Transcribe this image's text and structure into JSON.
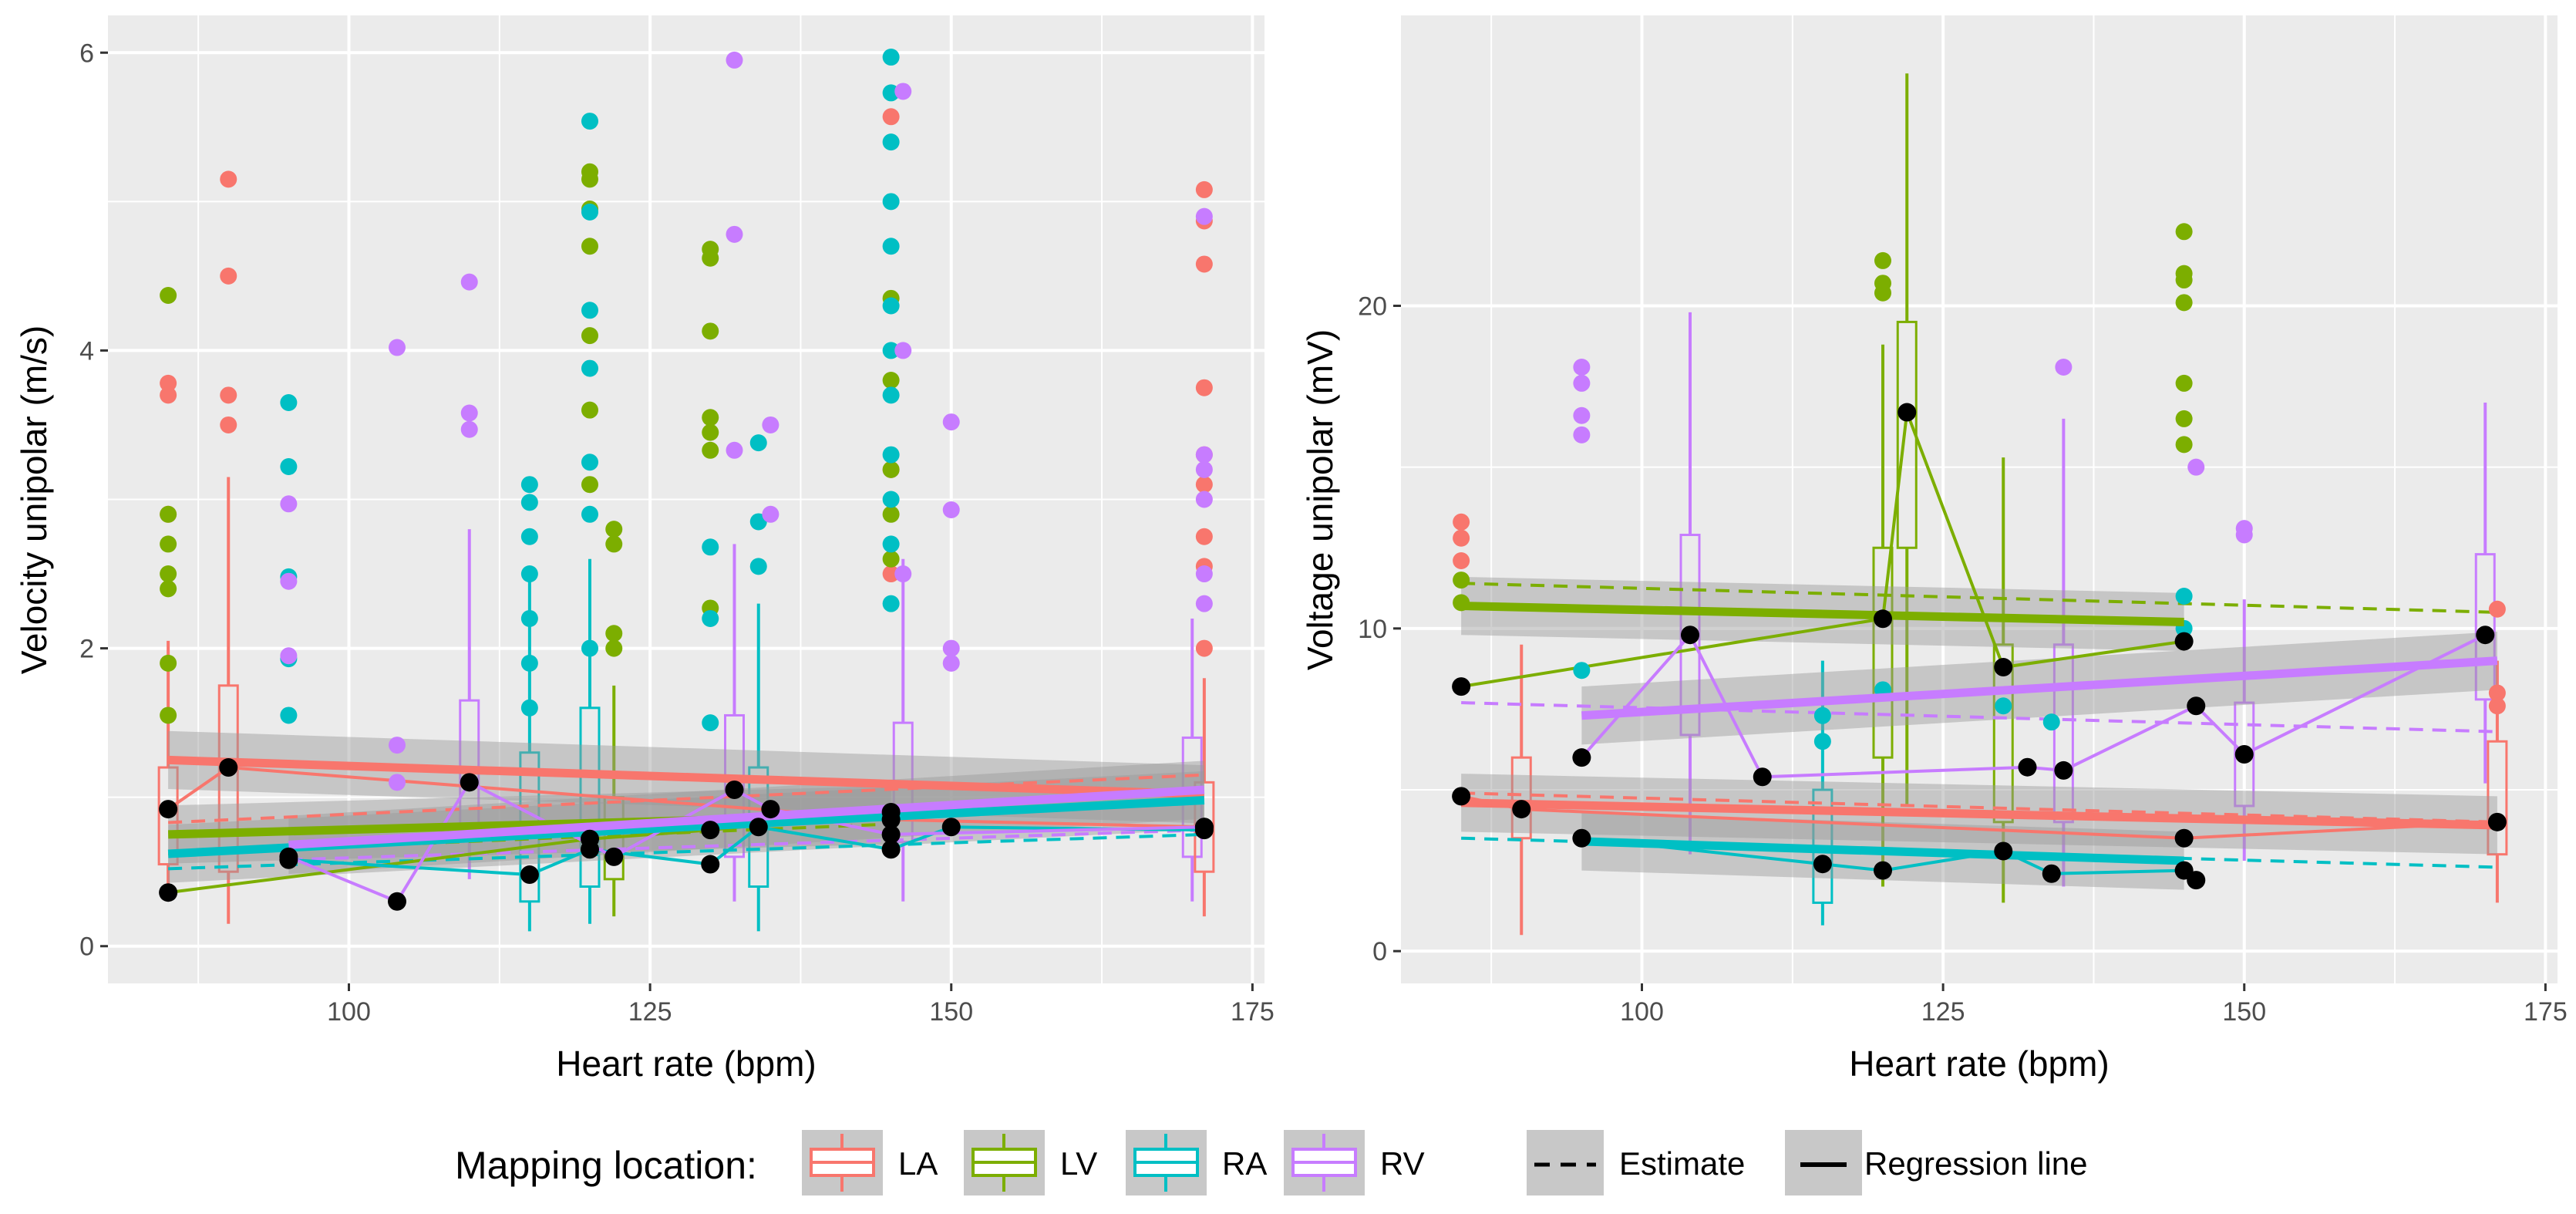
{
  "colors": {
    "LA": "#F8766D",
    "LV": "#7CAE00",
    "RA": "#00BFC4",
    "RV": "#C77CFF",
    "panel": "#EBEBEB",
    "grid": "#FFFFFF",
    "mean": "#000000",
    "band": "#999999"
  },
  "chart_data": [
    {
      "type": "scatter",
      "id": "left",
      "ylabel": "Velocity unipolar (m/s)",
      "xlabel": "Heart rate (bpm)",
      "xlim": [
        80,
        176
      ],
      "ylim": [
        -0.25,
        6.25
      ],
      "xticks": [
        100,
        125,
        150,
        175
      ],
      "xtick_labels": [
        "100",
        "125",
        "150",
        "175"
      ],
      "yticks": [
        0,
        2,
        4,
        6
      ],
      "ytick_labels": [
        "0",
        "2",
        "4",
        "6"
      ],
      "regression": [
        {
          "group": "LA",
          "x": [
            85,
            171
          ],
          "y": [
            1.25,
            1.02
          ]
        },
        {
          "group": "LV",
          "x": [
            85,
            145
          ],
          "y": [
            0.75,
            0.88
          ]
        },
        {
          "group": "RA",
          "x": [
            85,
            171
          ],
          "y": [
            0.62,
            0.98
          ]
        },
        {
          "group": "RV",
          "x": [
            95,
            171
          ],
          "y": [
            0.68,
            1.05
          ]
        }
      ],
      "estimate": [
        {
          "group": "LA",
          "x": [
            85,
            171
          ],
          "y": [
            0.83,
            1.15
          ]
        },
        {
          "group": "LV",
          "x": [
            85,
            145
          ],
          "y": [
            0.62,
            0.82
          ]
        },
        {
          "group": "RA",
          "x": [
            85,
            171
          ],
          "y": [
            0.52,
            0.75
          ]
        },
        {
          "group": "RV",
          "x": [
            95,
            171
          ],
          "y": [
            0.58,
            0.78
          ]
        }
      ],
      "means": [
        {
          "group": "LA",
          "x": [
            85,
            90,
            171,
            145
          ],
          "y": [
            0.92,
            1.2,
            0.8,
            0.85
          ]
        },
        {
          "group": "LV",
          "x": [
            85,
            120,
            130,
            145
          ],
          "y": [
            0.36,
            0.72,
            0.78,
            0.9
          ]
        },
        {
          "group": "RA",
          "x": [
            95,
            115,
            120,
            130,
            134,
            145,
            150,
            171
          ],
          "y": [
            0.58,
            0.48,
            0.65,
            0.55,
            0.8,
            0.65,
            0.8,
            0.78
          ]
        },
        {
          "group": "RV",
          "x": [
            95,
            104,
            110,
            122,
            132,
            135,
            145,
            171
          ],
          "y": [
            0.6,
            0.3,
            1.1,
            0.6,
            1.05,
            0.92,
            0.75,
            0.8
          ]
        }
      ],
      "points": [
        {
          "group": "LA",
          "x": [
            85,
            85,
            85,
            90,
            90,
            90,
            90,
            145,
            145,
            145,
            171,
            171,
            171,
            171,
            171,
            171,
            171,
            171,
            171
          ],
          "y": [
            3.78,
            3.7,
            2.9,
            5.15,
            4.5,
            3.7,
            3.5,
            5.57,
            3.2,
            2.5,
            5.08,
            4.87,
            4.58,
            3.75,
            3.3,
            3.1,
            2.75,
            2.55,
            2.0
          ]
        },
        {
          "group": "LV",
          "x": [
            85,
            85,
            85,
            85,
            85,
            85,
            85,
            120,
            120,
            120,
            120,
            120,
            120,
            120,
            122,
            122,
            122,
            122,
            130,
            130,
            130,
            130,
            130,
            130,
            130,
            145,
            145,
            145,
            145,
            145
          ],
          "y": [
            4.37,
            2.9,
            2.7,
            2.5,
            2.4,
            1.9,
            1.55,
            5.2,
            5.15,
            4.95,
            4.7,
            4.1,
            3.6,
            3.1,
            2.8,
            2.7,
            2.1,
            2.0,
            4.68,
            4.62,
            4.13,
            3.55,
            3.45,
            3.33,
            2.27,
            4.35,
            3.8,
            3.2,
            2.9,
            2.6
          ]
        },
        {
          "group": "RA",
          "x": [
            95,
            95,
            95,
            95,
            95,
            115,
            115,
            115,
            115,
            115,
            115,
            115,
            120,
            120,
            120,
            120,
            120,
            120,
            120,
            130,
            130,
            130,
            134,
            134,
            134,
            145,
            145,
            145,
            145,
            145,
            145,
            145,
            145,
            145,
            145,
            145,
            145
          ],
          "y": [
            3.65,
            3.22,
            2.48,
            1.93,
            1.55,
            3.1,
            2.98,
            2.75,
            2.5,
            2.2,
            1.9,
            1.6,
            5.54,
            4.93,
            4.27,
            3.88,
            3.25,
            2.9,
            2.0,
            2.68,
            2.2,
            1.5,
            3.38,
            2.85,
            2.55,
            5.97,
            5.73,
            5.4,
            5.0,
            4.7,
            4.3,
            4.0,
            3.7,
            3.3,
            3.0,
            2.7,
            2.3
          ]
        },
        {
          "group": "RV",
          "x": [
            95,
            95,
            95,
            104,
            104,
            104,
            110,
            110,
            110,
            132,
            132,
            132,
            135,
            135,
            146,
            146,
            146,
            150,
            150,
            150,
            150,
            171,
            171,
            171,
            171,
            171,
            171
          ],
          "y": [
            2.97,
            2.45,
            1.95,
            4.02,
            1.35,
            1.1,
            4.46,
            3.58,
            3.47,
            5.95,
            4.78,
            3.33,
            3.5,
            2.9,
            5.74,
            4.0,
            2.5,
            3.52,
            2.93,
            2.0,
            1.9,
            4.9,
            3.3,
            3.2,
            3.0,
            2.5,
            2.3
          ]
        }
      ],
      "boxplots": [
        {
          "group": "LA",
          "x": 90,
          "q1": 0.5,
          "q3": 1.75,
          "lo": 0.15,
          "hi": 3.15
        },
        {
          "group": "LA",
          "x": 85,
          "q1": 0.55,
          "q3": 1.2,
          "lo": 0.3,
          "hi": 2.05
        },
        {
          "group": "RA",
          "x": 115,
          "q1": 0.3,
          "q3": 1.3,
          "lo": 0.1,
          "hi": 2.5
        },
        {
          "group": "LV",
          "x": 122,
          "q1": 0.45,
          "q3": 1.0,
          "lo": 0.2,
          "hi": 1.75
        },
        {
          "group": "RV",
          "x": 110,
          "q1": 0.8,
          "q3": 1.65,
          "lo": 0.45,
          "hi": 2.8
        },
        {
          "group": "RV",
          "x": 132,
          "q1": 0.6,
          "q3": 1.55,
          "lo": 0.3,
          "hi": 2.7
        },
        {
          "group": "RA",
          "x": 134,
          "q1": 0.4,
          "q3": 1.2,
          "lo": 0.1,
          "hi": 2.3
        },
        {
          "group": "RV",
          "x": 146,
          "q1": 0.7,
          "q3": 1.5,
          "lo": 0.3,
          "hi": 2.6
        },
        {
          "group": "RV",
          "x": 170,
          "q1": 0.6,
          "q3": 1.4,
          "lo": 0.3,
          "hi": 2.2
        },
        {
          "group": "LA",
          "x": 171,
          "q1": 0.5,
          "q3": 1.1,
          "lo": 0.2,
          "hi": 1.8
        },
        {
          "group": "RA",
          "x": 120,
          "q1": 0.4,
          "q3": 1.6,
          "lo": 0.15,
          "hi": 2.6
        }
      ]
    },
    {
      "type": "scatter",
      "id": "right",
      "ylabel": "Voltage unipolar (mV)",
      "xlabel": "Heart rate (bpm)",
      "xlim": [
        80,
        176
      ],
      "ylim": [
        -1,
        29
      ],
      "xticks": [
        100,
        125,
        150,
        175
      ],
      "xtick_labels": [
        "100",
        "125",
        "150",
        "175"
      ],
      "yticks": [
        0,
        10,
        20
      ],
      "ytick_labels": [
        "0",
        "10",
        "20"
      ],
      "regression": [
        {
          "group": "LA",
          "x": [
            85,
            171
          ],
          "y": [
            4.6,
            3.9
          ]
        },
        {
          "group": "LV",
          "x": [
            85,
            145
          ],
          "y": [
            10.7,
            10.2
          ]
        },
        {
          "group": "RA",
          "x": [
            95,
            145
          ],
          "y": [
            3.4,
            2.8
          ]
        },
        {
          "group": "RV",
          "x": [
            95,
            171
          ],
          "y": [
            7.3,
            9.0
          ]
        }
      ],
      "estimate": [
        {
          "group": "LA",
          "x": [
            85,
            171
          ],
          "y": [
            4.9,
            4.0
          ]
        },
        {
          "group": "LV",
          "x": [
            85,
            171
          ],
          "y": [
            11.4,
            10.5
          ]
        },
        {
          "group": "RA",
          "x": [
            85,
            171
          ],
          "y": [
            3.5,
            2.6
          ]
        },
        {
          "group": "RV",
          "x": [
            85,
            171
          ],
          "y": [
            7.7,
            6.8
          ]
        }
      ],
      "means": [
        {
          "group": "LA",
          "x": [
            85,
            90,
            145,
            171
          ],
          "y": [
            4.8,
            4.4,
            3.5,
            4.0
          ]
        },
        {
          "group": "LV",
          "x": [
            85,
            120,
            122,
            130,
            145
          ],
          "y": [
            8.2,
            10.3,
            16.7,
            8.8,
            9.6
          ]
        },
        {
          "group": "RA",
          "x": [
            95,
            115,
            120,
            130,
            134,
            145,
            146
          ],
          "y": [
            3.5,
            2.7,
            2.5,
            3.1,
            2.4,
            2.5,
            2.2
          ]
        },
        {
          "group": "RV",
          "x": [
            95,
            104,
            110,
            132,
            135,
            146,
            150,
            170
          ],
          "y": [
            6.0,
            9.8,
            5.4,
            5.7,
            5.6,
            7.6,
            6.1,
            9.8
          ]
        }
      ],
      "points": [
        {
          "group": "LA",
          "x": [
            85,
            85,
            85,
            171,
            171,
            171
          ],
          "y": [
            13.3,
            12.8,
            12.1,
            10.6,
            8.0,
            7.6
          ]
        },
        {
          "group": "LV",
          "x": [
            85,
            85,
            120,
            120,
            120,
            145,
            145,
            145,
            145,
            145,
            145,
            145
          ],
          "y": [
            11.5,
            10.8,
            21.4,
            20.7,
            20.4,
            22.3,
            21.0,
            20.8,
            20.1,
            17.6,
            16.5,
            15.7
          ]
        },
        {
          "group": "RA",
          "x": [
            95,
            115,
            115,
            120,
            130,
            134,
            145,
            145
          ],
          "y": [
            8.7,
            7.3,
            6.5,
            8.1,
            7.6,
            7.1,
            11.0,
            10.0
          ]
        },
        {
          "group": "RV",
          "x": [
            95,
            95,
            95,
            95,
            135,
            146,
            150,
            150
          ],
          "y": [
            18.1,
            17.6,
            16.6,
            16.0,
            18.1,
            15.0,
            13.1,
            12.9
          ]
        }
      ],
      "boxplots": [
        {
          "group": "LA",
          "x": 90,
          "q1": 3.5,
          "q3": 6.0,
          "lo": 0.5,
          "hi": 9.5
        },
        {
          "group": "LV",
          "x": 122,
          "q1": 12.5,
          "q3": 19.5,
          "lo": 4.5,
          "hi": 27.2
        },
        {
          "group": "RV",
          "x": 104,
          "q1": 6.7,
          "q3": 12.9,
          "lo": 3.0,
          "hi": 19.8
        },
        {
          "group": "RV",
          "x": 150,
          "q1": 4.5,
          "q3": 7.7,
          "lo": 2.8,
          "hi": 10.9
        },
        {
          "group": "RV",
          "x": 170,
          "q1": 7.8,
          "q3": 12.3,
          "lo": 5.2,
          "hi": 17.0
        },
        {
          "group": "RV",
          "x": 135,
          "q1": 4.0,
          "q3": 9.5,
          "lo": 2.0,
          "hi": 16.5
        },
        {
          "group": "RA",
          "x": 115,
          "q1": 1.5,
          "q3": 5.0,
          "lo": 0.8,
          "hi": 9.0
        },
        {
          "group": "LV",
          "x": 130,
          "q1": 4.0,
          "q3": 9.5,
          "lo": 1.5,
          "hi": 15.3
        },
        {
          "group": "LV",
          "x": 120,
          "q1": 6.0,
          "q3": 12.5,
          "lo": 2.0,
          "hi": 18.8
        },
        {
          "group": "LA",
          "x": 171,
          "q1": 3.0,
          "q3": 6.5,
          "lo": 1.5,
          "hi": 9.0
        }
      ]
    }
  ],
  "legend": {
    "title": "Mapping location:",
    "groups": [
      "LA",
      "LV",
      "RA",
      "RV"
    ],
    "linetypes": [
      "Estimate",
      "Regression line"
    ]
  }
}
